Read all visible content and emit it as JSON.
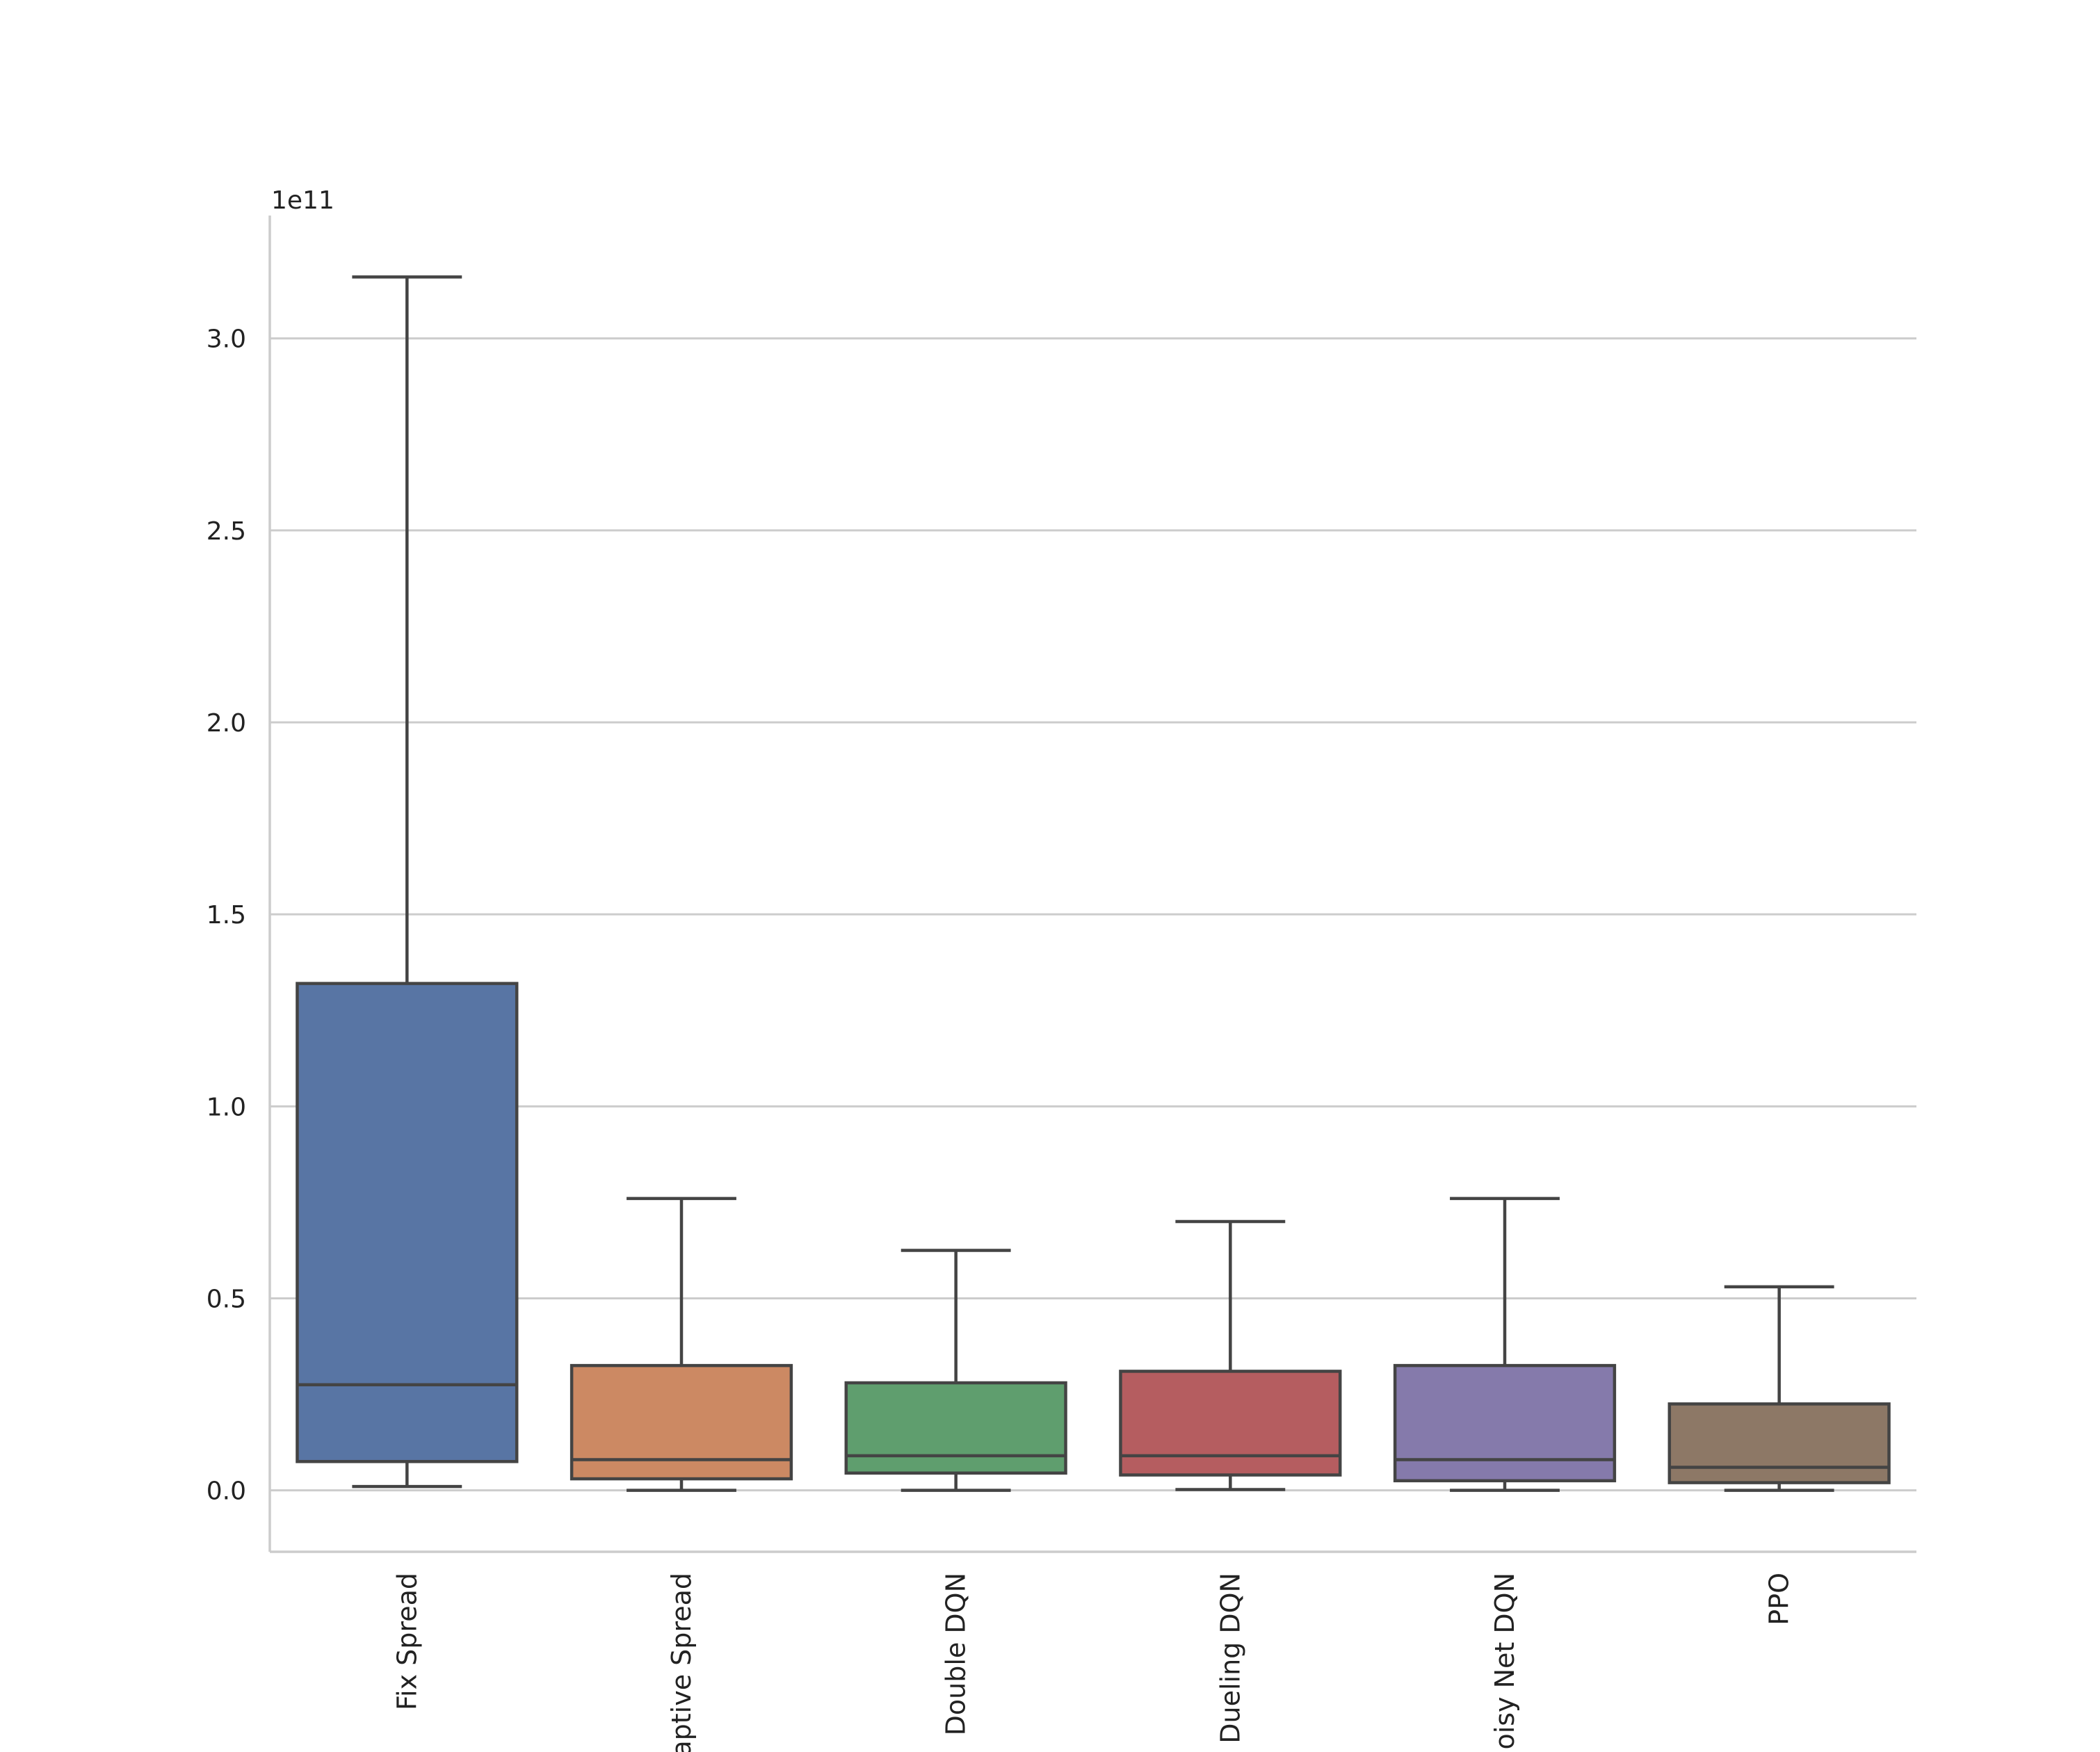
{
  "chart_data": {
    "type": "box",
    "title": "",
    "xlabel": "",
    "ylabel": "",
    "y_offset_label": "1e11",
    "y_scale": 100000000000,
    "ylim": [
      -0.16,
      3.32
    ],
    "yticks": [
      0.0,
      0.5,
      1.0,
      1.5,
      2.0,
      2.5,
      3.0
    ],
    "ytick_labels": [
      "0.0",
      "0.5",
      "1.0",
      "1.5",
      "2.0",
      "2.5",
      "3.0"
    ],
    "grid": "horizontal",
    "categories": [
      "Fix Spread",
      "Adaptive Spread",
      "Double DQN",
      "Dueling DQN",
      "Noisy Net DQN",
      "PPO"
    ],
    "colors": [
      "#5875a4",
      "#cc8963",
      "#5f9e6e",
      "#b55d60",
      "#857aab",
      "#8d7866"
    ],
    "boxes": [
      {
        "name": "Fix Spread",
        "whisker_low": 0.01,
        "q1": 0.075,
        "median": 0.275,
        "q3": 1.32,
        "whisker_high": 3.16
      },
      {
        "name": "Adaptive Spread",
        "whisker_low": 0.0,
        "q1": 0.03,
        "median": 0.08,
        "q3": 0.325,
        "whisker_high": 0.76
      },
      {
        "name": "Double DQN",
        "whisker_low": 0.0,
        "q1": 0.045,
        "median": 0.09,
        "q3": 0.28,
        "whisker_high": 0.625
      },
      {
        "name": "Dueling DQN",
        "whisker_low": 0.002,
        "q1": 0.04,
        "median": 0.09,
        "q3": 0.31,
        "whisker_high": 0.7
      },
      {
        "name": "Noisy Net DQN",
        "whisker_low": 0.0,
        "q1": 0.025,
        "median": 0.08,
        "q3": 0.325,
        "whisker_high": 0.76
      },
      {
        "name": "PPO",
        "whisker_low": 0.0,
        "q1": 0.02,
        "median": 0.06,
        "q3": 0.225,
        "whisker_high": 0.53
      }
    ]
  }
}
